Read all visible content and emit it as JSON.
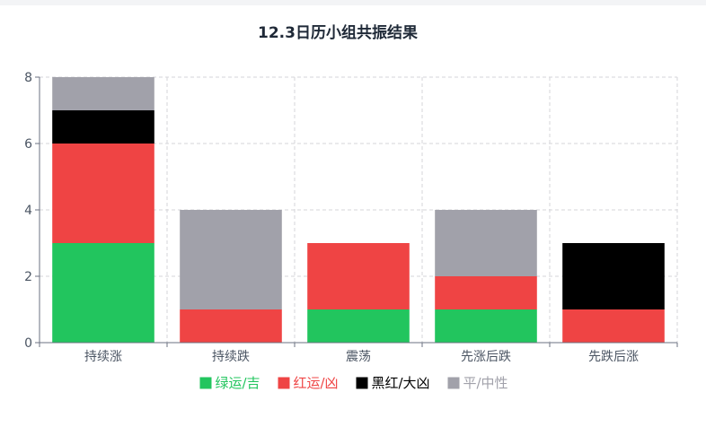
{
  "chart_data": {
    "type": "bar",
    "stacked": true,
    "title": "12.3日历小组共振结果",
    "xlabel": "",
    "ylabel": "",
    "categories": [
      "持续涨",
      "持续跌",
      "震荡",
      "先涨后跌",
      "先跌后涨"
    ],
    "ylim": [
      0,
      8
    ],
    "yticks": [
      0,
      2,
      4,
      6,
      8
    ],
    "grid": true,
    "legend_position": "bottom",
    "series": [
      {
        "name": "绿运/吉",
        "color": "#22c55e",
        "values": [
          3,
          0,
          1,
          1,
          0
        ]
      },
      {
        "name": "红运/凶",
        "color": "#ef4444",
        "values": [
          3,
          1,
          2,
          1,
          1
        ]
      },
      {
        "name": "黑红/大凶",
        "color": "#000000",
        "values": [
          1,
          0,
          0,
          0,
          2
        ]
      },
      {
        "name": "平/中性",
        "color": "#a1a1aa",
        "values": [
          1,
          3,
          0,
          2,
          0
        ]
      }
    ]
  }
}
